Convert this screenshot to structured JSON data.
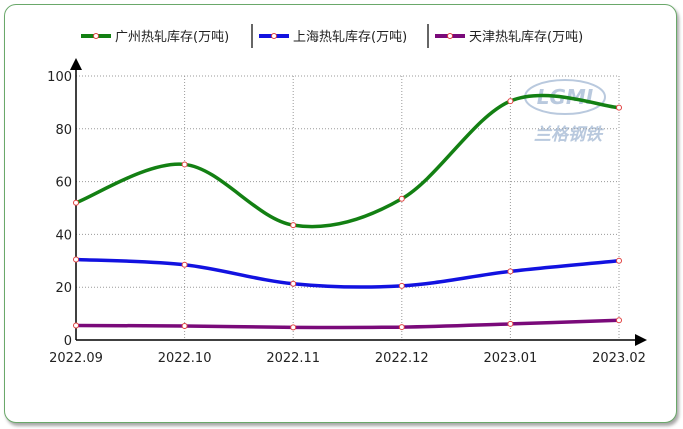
{
  "chart_data": {
    "type": "line",
    "categories": [
      "2022.09",
      "2022.10",
      "2022.11",
      "2022.12",
      "2023.01",
      "2023.02"
    ],
    "series": [
      {
        "name": "广州热轧库存(万吨)",
        "color": "#138013",
        "values": [
          52,
          66.5,
          43.5,
          53.5,
          90.5,
          88
        ]
      },
      {
        "name": "上海热轧库存(万吨)",
        "color": "#1212e0",
        "values": [
          30.5,
          28.5,
          21.3,
          20.5,
          26,
          30
        ]
      },
      {
        "name": "天津热轧库存(万吨)",
        "color": "#7a0a7a",
        "values": [
          5.5,
          5.3,
          4.8,
          4.9,
          6.1,
          7.5
        ]
      }
    ],
    "ylim": [
      0,
      100
    ],
    "yticks": [
      0,
      20,
      40,
      60,
      80,
      100
    ],
    "grid": true,
    "legend": "top"
  },
  "watermark": {
    "logo_text": "LGMI",
    "cn_text": "兰格钢铁",
    "color": "#b9c9de"
  }
}
